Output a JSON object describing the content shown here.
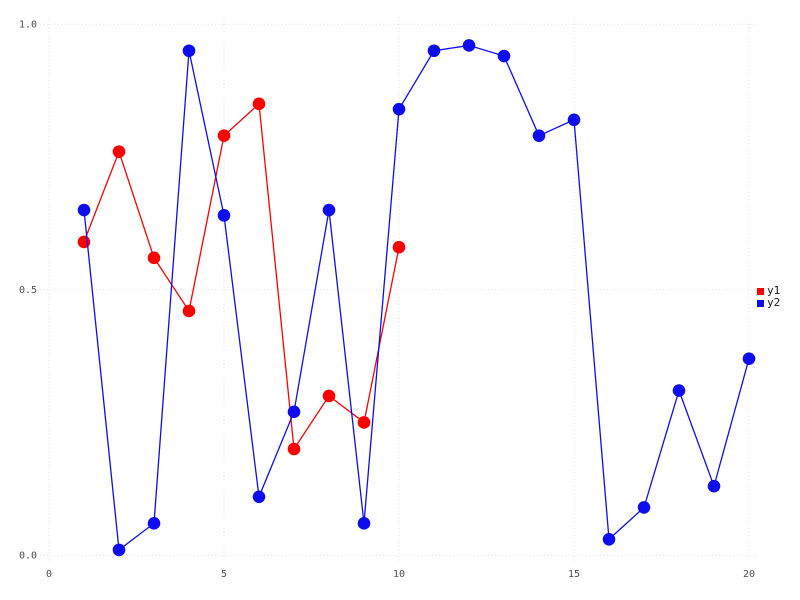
{
  "figure": {
    "background": "#ffffff",
    "grid_color": "#dedee6",
    "tick_label_color": "#4d4d4d"
  },
  "chart_data": {
    "type": "line",
    "title": "",
    "xlabel": "",
    "ylabel": "",
    "xlim": [
      0,
      20
    ],
    "ylim": [
      0.0,
      1.0
    ],
    "grid": "dotted",
    "legend_position": "right",
    "xticks": [
      0,
      5,
      10,
      15,
      20
    ],
    "xtick_labels": [
      "0",
      "5",
      "10",
      "15",
      "20"
    ],
    "yticks": [
      0.0,
      0.5,
      1.0
    ],
    "ytick_labels": [
      "0.0",
      "0.5",
      "1.0"
    ],
    "series": [
      {
        "name": "y1",
        "color": "#ff0000",
        "marker": "circle",
        "x": [
          1,
          2,
          3,
          4,
          5,
          6,
          7,
          8,
          9,
          10
        ],
        "values": [
          0.59,
          0.76,
          0.56,
          0.46,
          0.79,
          0.85,
          0.2,
          0.3,
          0.25,
          0.58
        ]
      },
      {
        "name": "y2",
        "color": "#0d0df0",
        "marker": "circle",
        "x": [
          1,
          2,
          3,
          4,
          5,
          6,
          7,
          8,
          9,
          10,
          11,
          12,
          13,
          14,
          15,
          16,
          17,
          18,
          19,
          20
        ],
        "values": [
          0.65,
          0.01,
          0.06,
          0.95,
          0.64,
          0.11,
          0.27,
          0.65,
          0.06,
          0.84,
          0.95,
          0.96,
          0.94,
          0.79,
          0.82,
          0.03,
          0.09,
          0.31,
          0.13,
          0.37
        ]
      }
    ]
  },
  "legend": {
    "items": [
      {
        "label": "y1",
        "color": "#ff0000"
      },
      {
        "label": "y2",
        "color": "#0d0df0"
      }
    ]
  }
}
